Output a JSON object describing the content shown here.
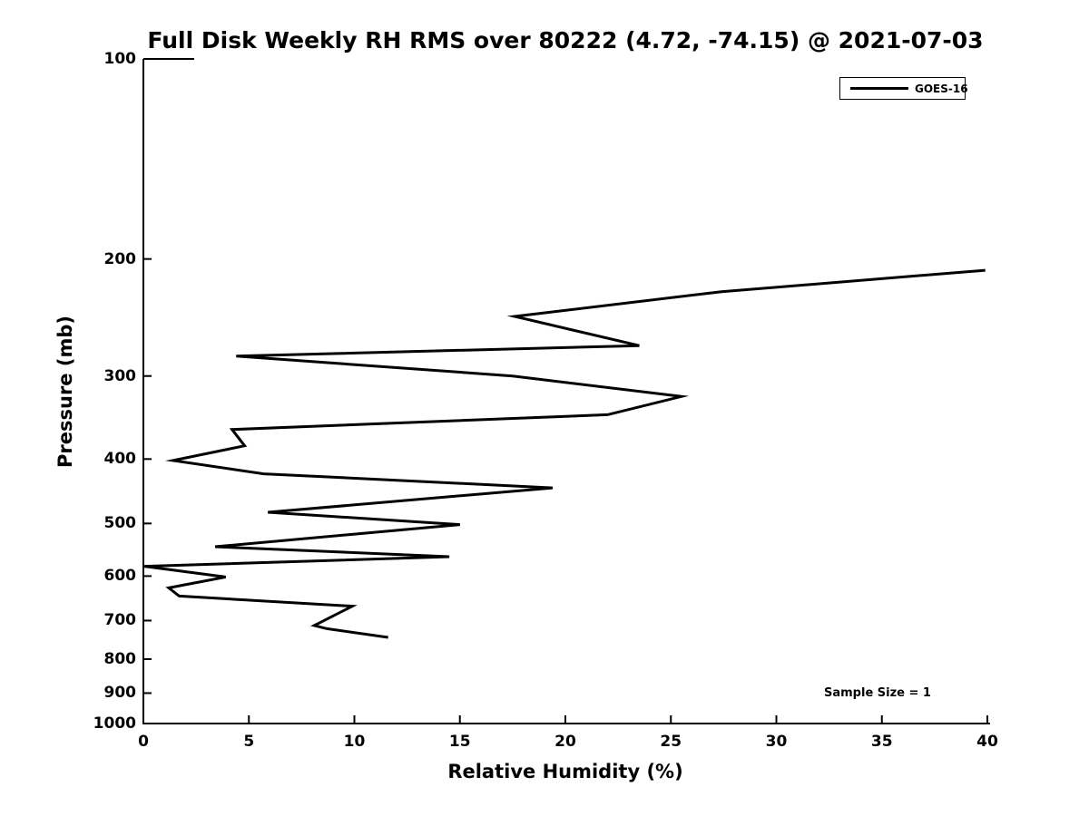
{
  "chart_data": {
    "type": "line",
    "title": "Full Disk Weekly RH RMS over 80222 (4.72, -74.15) @ 2021-07-03",
    "xlabel": "Relative Humidity (%)",
    "ylabel": "Pressure (mb)",
    "xlim": [
      0,
      40
    ],
    "ylim": [
      1000,
      100
    ],
    "yscale": "log",
    "grid": false,
    "x_ticks": [
      0,
      5,
      10,
      15,
      20,
      25,
      30,
      35,
      40
    ],
    "y_ticks": [
      100,
      200,
      300,
      400,
      500,
      600,
      700,
      800,
      900,
      1000
    ],
    "annotation": "Sample Size = 1",
    "legend_position": "upper right",
    "line_color": "#000000",
    "series": [
      {
        "name": "GOES-16",
        "points_rh_pressure": [
          [
            39.9,
            208
          ],
          [
            27.4,
            224
          ],
          [
            17.6,
            244
          ],
          [
            23.5,
            270
          ],
          [
            4.4,
            280
          ],
          [
            17.5,
            300
          ],
          [
            25.5,
            322
          ],
          [
            22.0,
            343
          ],
          [
            4.2,
            361
          ],
          [
            4.8,
            382
          ],
          [
            1.4,
            402
          ],
          [
            5.7,
            421
          ],
          [
            19.4,
            442
          ],
          [
            5.9,
            481
          ],
          [
            15.0,
            502
          ],
          [
            3.4,
            542
          ],
          [
            14.5,
            561
          ],
          [
            0.05,
            580
          ],
          [
            3.9,
            602
          ],
          [
            1.2,
            625
          ],
          [
            1.7,
            643
          ],
          [
            9.9,
            666
          ],
          [
            8.1,
            712
          ],
          [
            8.7,
            720
          ],
          [
            11.6,
            742
          ]
        ]
      }
    ]
  }
}
